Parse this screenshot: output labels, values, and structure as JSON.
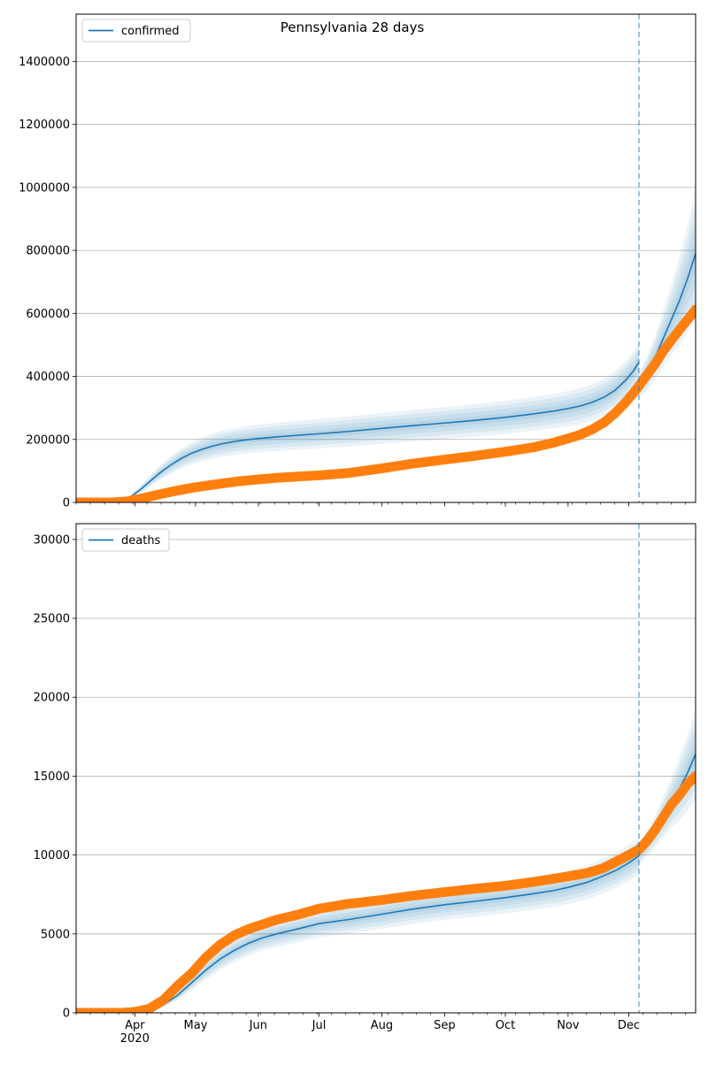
{
  "figure": {
    "suptitle": "Pennsylvania 28 days"
  },
  "colors": {
    "model": "#1f77b4",
    "observed": "#ff7f0e",
    "band": "#1f77b4",
    "grid": "#b0b0b0",
    "marker": "#1f77b4"
  },
  "chart_data": [
    {
      "type": "line",
      "legend": {
        "label": "confirmed",
        "placement": "upper-left"
      },
      "x_axis": {
        "start": "2020-03-03",
        "end": "2021-01-03",
        "month_ticks": [
          "2020-04-01",
          "2020-05-01",
          "2020-06-01",
          "2020-07-01",
          "2020-08-01",
          "2020-09-01",
          "2020-10-01",
          "2020-11-01",
          "2020-12-01"
        ],
        "tick_labels": [],
        "year_label": ""
      },
      "y_axis": {
        "ylim": [
          0,
          1550000
        ],
        "ticks": [
          0,
          200000,
          400000,
          600000,
          800000,
          1000000,
          1200000,
          1400000
        ],
        "tick_labels": [
          "0",
          "200000",
          "400000",
          "600000",
          "800000",
          "1000000",
          "1200000",
          "1400000"
        ]
      },
      "grid": "horizontal",
      "forecast_start": "2020-12-06",
      "model": {
        "name": "confirmed",
        "x": [
          "2020-03-03",
          "2020-03-20",
          "2020-03-25",
          "2020-03-30",
          "2020-04-04",
          "2020-04-09",
          "2020-04-14",
          "2020-04-19",
          "2020-04-24",
          "2020-04-29",
          "2020-05-04",
          "2020-05-09",
          "2020-05-14",
          "2020-05-19",
          "2020-05-24",
          "2020-06-01",
          "2020-06-10",
          "2020-06-20",
          "2020-07-01",
          "2020-07-15",
          "2020-08-01",
          "2020-08-15",
          "2020-09-01",
          "2020-09-15",
          "2020-10-01",
          "2020-10-15",
          "2020-10-25",
          "2020-11-01",
          "2020-11-07",
          "2020-11-13",
          "2020-11-19",
          "2020-11-24",
          "2020-11-29",
          "2020-12-03",
          "2020-12-06"
        ],
        "y": [
          0,
          0,
          4000,
          18000,
          42000,
          70000,
          97000,
          120000,
          140000,
          156000,
          168000,
          178000,
          186000,
          192000,
          197000,
          203000,
          208000,
          213000,
          218000,
          225000,
          235000,
          243000,
          252000,
          260000,
          270000,
          281000,
          290000,
          298000,
          306000,
          318000,
          335000,
          355000,
          385000,
          415000,
          445000
        ],
        "band_spread": [
          0,
          0,
          2000,
          6000,
          12000,
          18000,
          24000,
          28000,
          32000,
          35000,
          38000,
          40000,
          41000,
          42000,
          43000,
          44000,
          45000,
          46000,
          47000,
          48000,
          49000,
          50000,
          51000,
          52000,
          53000,
          54000,
          55000,
          56000,
          57000,
          58000,
          59000,
          60000,
          61000,
          62000,
          63000
        ]
      },
      "forecast": {
        "x": [
          "2020-12-06",
          "2020-12-10",
          "2020-12-14",
          "2020-12-18",
          "2020-12-22",
          "2020-12-26",
          "2020-12-30",
          "2021-01-03"
        ],
        "y": [
          370000,
          410000,
          460000,
          520000,
          580000,
          640000,
          710000,
          790000
        ],
        "band_spread": [
          40000,
          55000,
          70000,
          90000,
          110000,
          140000,
          170000,
          210000
        ]
      },
      "observed": {
        "name": "",
        "x": [
          "2020-03-03",
          "2020-03-20",
          "2020-03-28",
          "2020-04-04",
          "2020-04-12",
          "2020-04-20",
          "2020-04-28",
          "2020-05-06",
          "2020-05-14",
          "2020-05-22",
          "2020-06-01",
          "2020-06-10",
          "2020-06-20",
          "2020-07-01",
          "2020-07-15",
          "2020-08-01",
          "2020-08-15",
          "2020-09-01",
          "2020-09-15",
          "2020-10-01",
          "2020-10-15",
          "2020-10-25",
          "2020-11-01",
          "2020-11-07",
          "2020-11-13",
          "2020-11-19",
          "2020-11-24",
          "2020-11-29",
          "2020-12-03",
          "2020-12-06",
          "2020-12-10",
          "2020-12-14",
          "2020-12-18",
          "2020-12-22",
          "2020-12-26",
          "2020-12-30",
          "2021-01-03"
        ],
        "y": [
          0,
          0,
          3000,
          12000,
          24000,
          35000,
          45000,
          53000,
          60000,
          67000,
          73000,
          78000,
          82000,
          86000,
          93000,
          108000,
          122000,
          136000,
          147000,
          161000,
          175000,
          190000,
          203000,
          215000,
          232000,
          255000,
          282000,
          315000,
          345000,
          370000,
          405000,
          440000,
          480000,
          515000,
          548000,
          580000,
          612000
        ]
      }
    },
    {
      "type": "line",
      "legend": {
        "label": "deaths",
        "placement": "upper-left"
      },
      "x_axis": {
        "start": "2020-03-03",
        "end": "2021-01-03",
        "month_ticks": [
          "2020-04-01",
          "2020-05-01",
          "2020-06-01",
          "2020-07-01",
          "2020-08-01",
          "2020-09-01",
          "2020-10-01",
          "2020-11-01",
          "2020-12-01"
        ],
        "tick_labels": [
          "Apr",
          "May",
          "Jun",
          "Jul",
          "Aug",
          "Sep",
          "Oct",
          "Nov",
          "Dec"
        ],
        "year_label": "2020"
      },
      "y_axis": {
        "ylim": [
          0,
          31000
        ],
        "ticks": [
          0,
          5000,
          10000,
          15000,
          20000,
          25000,
          30000
        ],
        "tick_labels": [
          "0",
          "5000",
          "10000",
          "15000",
          "20000",
          "25000",
          "30000"
        ]
      },
      "grid": "horizontal",
      "forecast_start": "2020-12-06",
      "model": {
        "name": "deaths",
        "x": [
          "2020-03-03",
          "2020-04-01",
          "2020-04-08",
          "2020-04-15",
          "2020-04-22",
          "2020-04-29",
          "2020-05-06",
          "2020-05-13",
          "2020-05-20",
          "2020-05-27",
          "2020-06-03",
          "2020-06-10",
          "2020-06-20",
          "2020-07-01",
          "2020-07-15",
          "2020-08-01",
          "2020-08-15",
          "2020-09-01",
          "2020-09-15",
          "2020-10-01",
          "2020-10-15",
          "2020-10-25",
          "2020-11-01",
          "2020-11-10",
          "2020-11-18",
          "2020-11-25",
          "2020-12-01",
          "2020-12-06"
        ],
        "y": [
          0,
          0,
          150,
          500,
          1100,
          1900,
          2700,
          3400,
          3950,
          4400,
          4750,
          5000,
          5300,
          5650,
          5900,
          6250,
          6550,
          6850,
          7050,
          7300,
          7550,
          7750,
          7950,
          8250,
          8650,
          9050,
          9500,
          9950
        ],
        "band_spread": [
          0,
          0,
          50,
          150,
          300,
          450,
          600,
          700,
          750,
          800,
          820,
          840,
          860,
          880,
          900,
          920,
          940,
          960,
          980,
          1000,
          1020,
          1040,
          1060,
          1080,
          1100,
          1120,
          1150,
          1180
        ]
      },
      "forecast": {
        "x": [
          "2020-12-06",
          "2020-12-10",
          "2020-12-14",
          "2020-12-18",
          "2020-12-22",
          "2020-12-26",
          "2020-12-30",
          "2021-01-03"
        ],
        "y": [
          10000,
          10700,
          11500,
          12400,
          13300,
          14200,
          15200,
          16400
        ],
        "band_spread": [
          600,
          800,
          1000,
          1300,
          1600,
          2000,
          2400,
          2900
        ]
      },
      "observed": {
        "name": "",
        "x": [
          "2020-03-03",
          "2020-03-25",
          "2020-04-01",
          "2020-04-08",
          "2020-04-15",
          "2020-04-22",
          "2020-04-29",
          "2020-05-06",
          "2020-05-13",
          "2020-05-20",
          "2020-05-27",
          "2020-06-03",
          "2020-06-10",
          "2020-06-20",
          "2020-07-01",
          "2020-07-15",
          "2020-08-01",
          "2020-08-15",
          "2020-09-01",
          "2020-09-15",
          "2020-10-01",
          "2020-10-15",
          "2020-10-25",
          "2020-11-01",
          "2020-11-10",
          "2020-11-18",
          "2020-11-25",
          "2020-12-01",
          "2020-12-06",
          "2020-12-10",
          "2020-12-14",
          "2020-12-18",
          "2020-12-22",
          "2020-12-26",
          "2020-12-30",
          "2021-01-03"
        ],
        "y": [
          0,
          0,
          60,
          250,
          800,
          1700,
          2500,
          3500,
          4300,
          4900,
          5300,
          5600,
          5900,
          6200,
          6600,
          6900,
          7150,
          7400,
          7650,
          7850,
          8050,
          8300,
          8500,
          8650,
          8850,
          9150,
          9600,
          10000,
          10350,
          10900,
          11600,
          12400,
          13200,
          13800,
          14500,
          15000
        ]
      }
    }
  ]
}
